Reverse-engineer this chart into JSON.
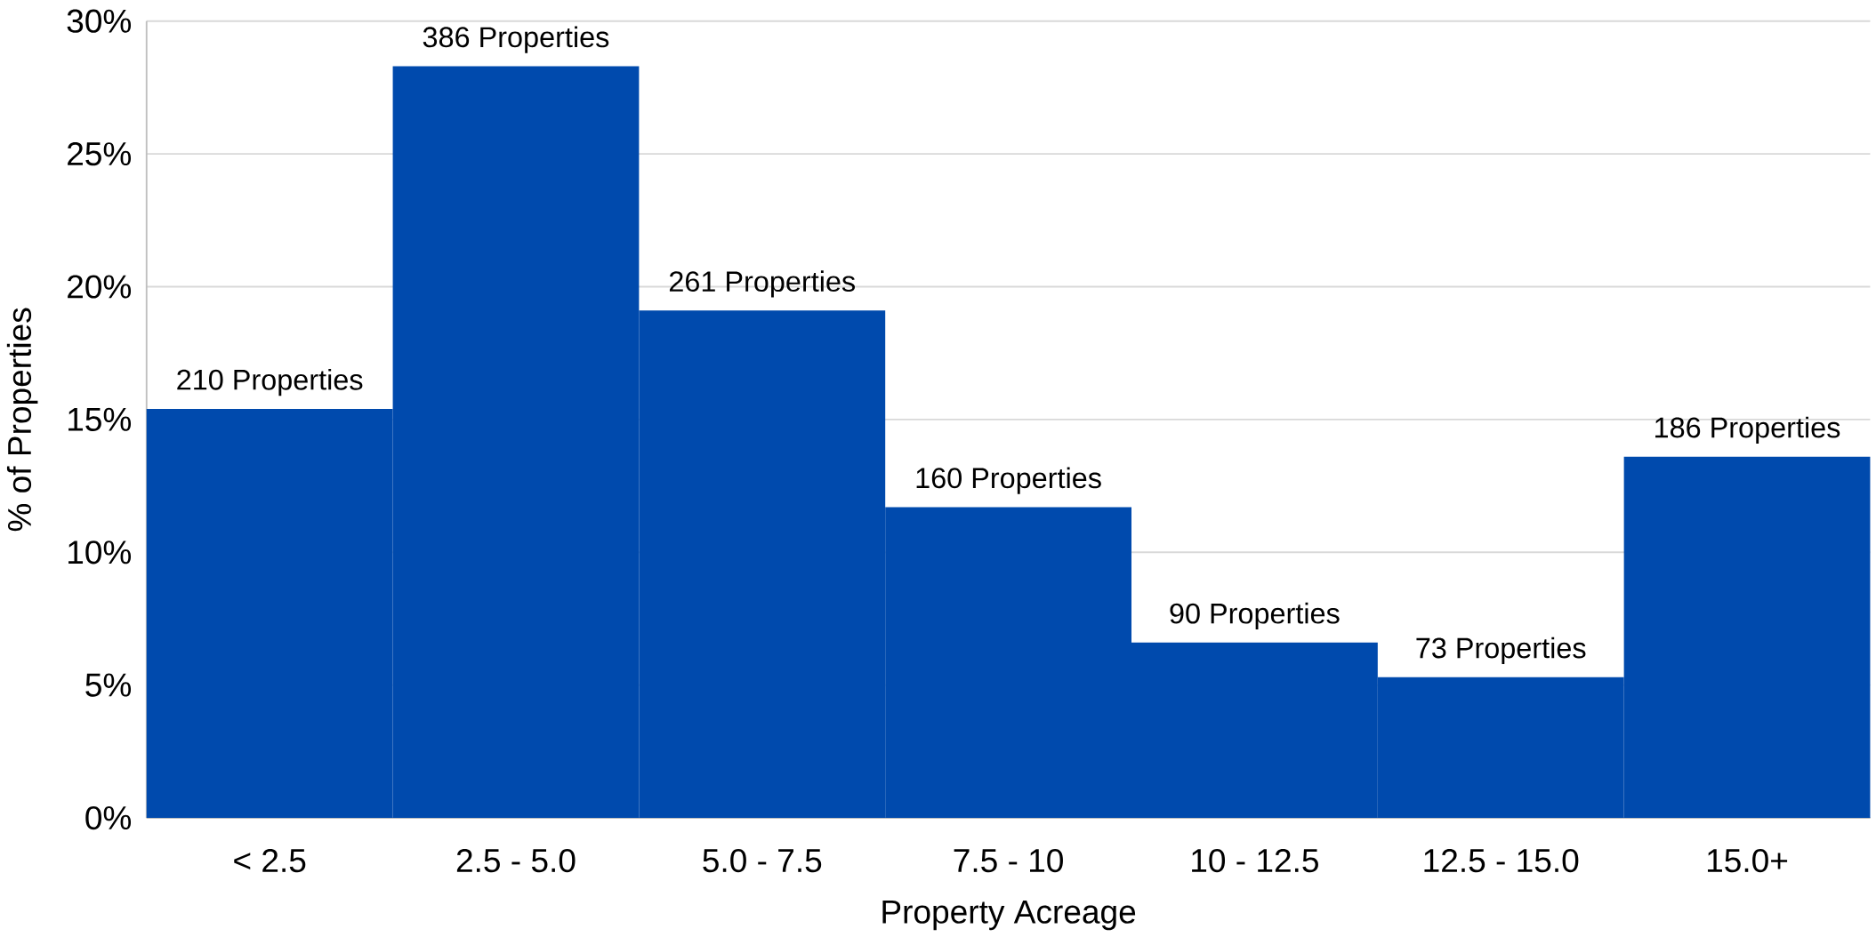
{
  "chart_data": {
    "type": "bar",
    "xlabel": "Property Acreage",
    "ylabel": "% of Properties",
    "categories": [
      "< 2.5",
      "2.5 - 5.0",
      "5.0 - 7.5",
      "7.5 - 10",
      "10 - 12.5",
      "12.5 - 15.0",
      "15.0+"
    ],
    "values": [
      15.4,
      28.3,
      19.1,
      11.7,
      6.6,
      5.3,
      13.6
    ],
    "annotations": [
      {
        "text": "210 Properties",
        "x": "< 2.5",
        "y": 15.4
      },
      {
        "text": "386 Properties",
        "x": "2.5 - 5.0",
        "y": 28.3
      },
      {
        "text": "261 Properties",
        "x": "5.0 - 7.5",
        "y": 19.1
      },
      {
        "text": "160 Properties",
        "x": "7.5 - 10",
        "y": 11.7
      },
      {
        "text": "90 Properties",
        "x": "10 - 12.5",
        "y": 6.6
      },
      {
        "text": "73 Properties",
        "x": "12.5 - 15.0",
        "y": 5.3
      },
      {
        "text": "186 Properties",
        "x": "15.0+",
        "y": 13.6
      }
    ],
    "color": "#004aad",
    "ylim": [
      0,
      30
    ],
    "yticks": [
      {
        "value": 0,
        "label": "0%"
      },
      {
        "value": 5,
        "label": "5%"
      },
      {
        "value": 10,
        "label": "10%"
      },
      {
        "value": 15,
        "label": "15%"
      },
      {
        "value": 20,
        "label": "20%"
      },
      {
        "value": 25,
        "label": "25%"
      },
      {
        "value": 30,
        "label": "30%"
      }
    ],
    "grid": "y"
  }
}
